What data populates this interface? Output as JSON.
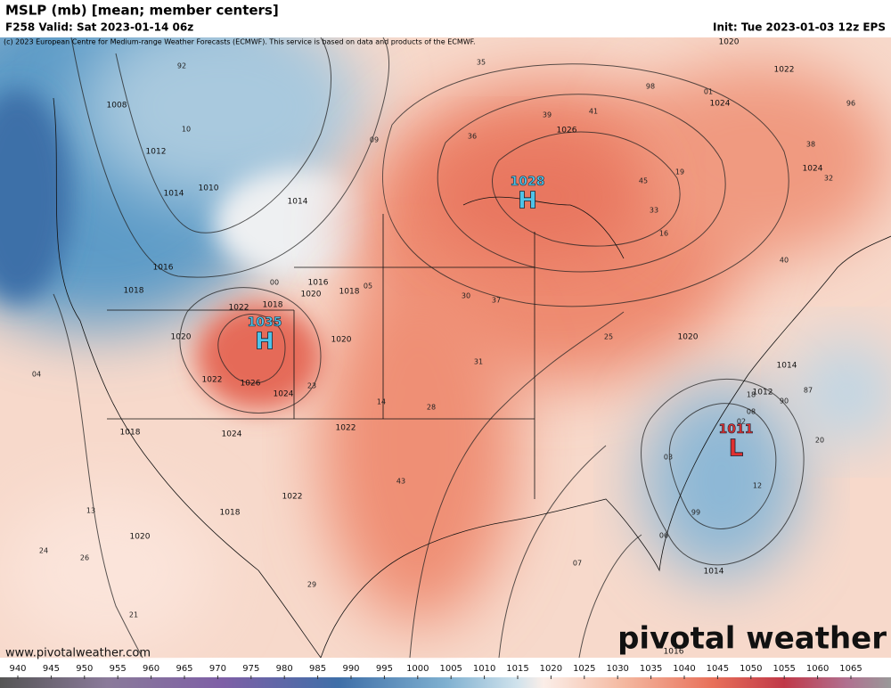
{
  "header": {
    "title": "MSLP (mb) [mean; member centers]",
    "valid": "F258 Valid: Sat 2023-01-14 06z",
    "init": "Init: Tue 2023-01-03 12z EPS",
    "credit": "(c) 2023 European Centre for Medium-range Weather Forecasts (ECMWF). This service is based on data and products of the ECMWF."
  },
  "centers": [
    {
      "value": 1028,
      "letter": "H"
    },
    {
      "value": 1035,
      "letter": "H"
    },
    {
      "value": 1011,
      "letter": "L"
    }
  ],
  "isobars": [
    1020,
    1022,
    1024,
    1026,
    1024,
    1008,
    1012,
    1010,
    1014,
    1014,
    1016,
    1018,
    1016,
    1018,
    1020,
    1022,
    1018,
    1020,
    1020,
    1022,
    1026,
    1024,
    1024,
    1022,
    1018,
    1022,
    1018,
    1020,
    1020,
    1014,
    1012,
    1014,
    1016
  ],
  "members": [
    "35",
    "39",
    "41",
    "45",
    "33",
    "16",
    "37",
    "30",
    "31",
    "28",
    "43",
    "14",
    "12",
    "25",
    "23",
    "04",
    "13",
    "24",
    "26",
    "20",
    "21",
    "18",
    "19",
    "40",
    "38",
    "96",
    "98",
    "99",
    "00",
    "01",
    "02",
    "03",
    "05",
    "06",
    "07",
    "08",
    "09",
    "10",
    "92",
    "36",
    "32",
    "29",
    "87",
    "90"
  ],
  "watermark": "pivotal weather",
  "url": "www.pivotalweather.com",
  "colorbar": [
    940,
    945,
    950,
    955,
    960,
    965,
    970,
    975,
    980,
    985,
    990,
    995,
    1000,
    1005,
    1010,
    1015,
    1020,
    1025,
    1030,
    1035,
    1040,
    1045,
    1050,
    1055,
    1060,
    1065
  ]
}
